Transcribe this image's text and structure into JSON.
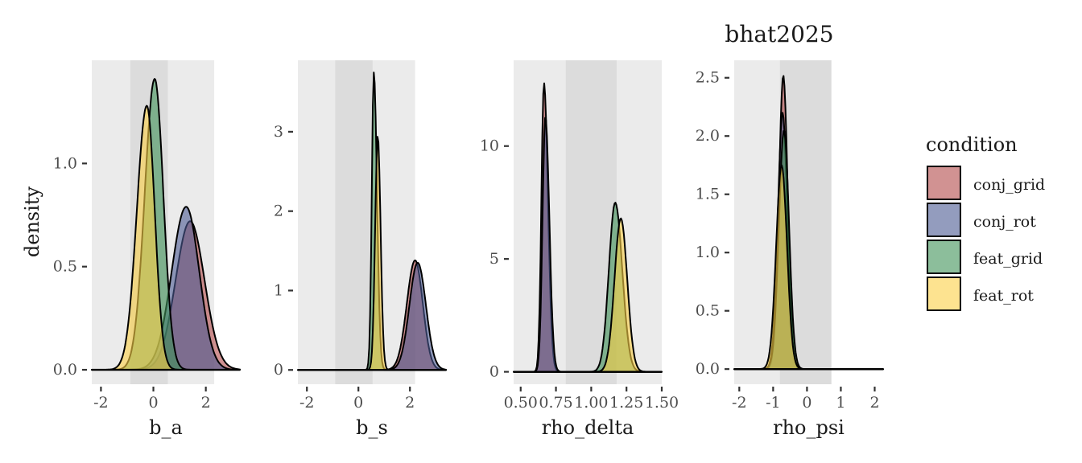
{
  "title": "bhat2025",
  "legend": {
    "title": "condition",
    "items": [
      {
        "label": "conj_grid",
        "color": "#b24a4a"
      },
      {
        "label": "conj_rot",
        "color": "#4b5a92"
      },
      {
        "label": "feat_grid",
        "color": "#3f9259"
      },
      {
        "label": "feat_rot",
        "color": "#fbd046"
      }
    ]
  },
  "y_axis_label": "density",
  "chart_data": [
    {
      "type": "area",
      "xlabel": "b_a",
      "ylabel": "density",
      "xlim": [
        -2.35,
        3.3
      ],
      "ylim": [
        -0.07,
        1.5
      ],
      "xticks": [
        -2,
        0,
        2
      ],
      "xtick_labels": [
        "-2",
        "0",
        "2"
      ],
      "yticks": [
        0.0,
        0.5,
        1.0
      ],
      "ytick_labels": [
        "0.0",
        "0.5",
        "1.0"
      ],
      "bands": [
        {
          "from": -2.35,
          "to": 2.32,
          "shade": "light"
        },
        {
          "from": -0.88,
          "to": 0.55,
          "shade": "dark"
        }
      ],
      "series": [
        {
          "name": "conj_grid",
          "color": "#b24a4a",
          "peak": 1.4,
          "height": 0.72,
          "sd_left": 0.55,
          "sd_right": 0.55,
          "from": -1.6,
          "to": 3.3
        },
        {
          "name": "conj_rot",
          "color": "#4b5a92",
          "peak": 1.25,
          "height": 0.79,
          "sd_left": 0.55,
          "sd_right": 0.5,
          "from": -1.6,
          "to": 3.3
        },
        {
          "name": "feat_grid",
          "color": "#3f9259",
          "peak": 0.05,
          "height": 1.41,
          "sd_left": 0.38,
          "sd_right": 0.33,
          "from": -2.35,
          "to": 2.5
        },
        {
          "name": "feat_rot",
          "color": "#fbd046",
          "peak": -0.25,
          "height": 1.28,
          "sd_left": 0.38,
          "sd_right": 0.3,
          "from": -2.35,
          "to": 2.5
        }
      ]
    },
    {
      "type": "area",
      "xlabel": "b_s",
      "ylabel": "density",
      "xlim": [
        -2.35,
        3.4
      ],
      "ylim": [
        -0.18,
        3.9
      ],
      "xticks": [
        -2,
        0,
        2
      ],
      "xtick_labels": [
        "-2",
        "0",
        "2"
      ],
      "yticks": [
        0,
        1,
        2,
        3
      ],
      "ytick_labels": [
        "0",
        "1",
        "2",
        "3"
      ],
      "bands": [
        {
          "from": -2.35,
          "to": 2.2,
          "shade": "light"
        },
        {
          "from": -0.9,
          "to": 0.55,
          "shade": "dark"
        }
      ],
      "series": [
        {
          "name": "conj_grid",
          "color": "#b24a4a",
          "peak": 2.2,
          "height": 1.38,
          "sd_left": 0.32,
          "sd_right": 0.3,
          "from": 1.0,
          "to": 3.4
        },
        {
          "name": "conj_rot",
          "color": "#4b5a92",
          "peak": 2.3,
          "height": 1.35,
          "sd_left": 0.32,
          "sd_right": 0.32,
          "from": 1.0,
          "to": 3.4
        },
        {
          "name": "feat_grid",
          "color": "#3f9259",
          "peak": 0.6,
          "height": 3.75,
          "sd_left": 0.08,
          "sd_right": 0.12,
          "from": -2.35,
          "to": 3.4
        },
        {
          "name": "feat_rot",
          "color": "#fbd046",
          "peak": 0.75,
          "height": 2.95,
          "sd_left": 0.1,
          "sd_right": 0.11,
          "from": -2.35,
          "to": 3.4
        }
      ]
    },
    {
      "type": "area",
      "xlabel": "rho_delta",
      "ylabel": "density",
      "xlim": [
        0.45,
        1.5
      ],
      "ylim": [
        -0.55,
        13.8
      ],
      "xticks": [
        0.5,
        0.75,
        1.0,
        1.25,
        1.5
      ],
      "xtick_labels": [
        "0.50",
        "0.75",
        "1.00",
        "1.25",
        "1.50"
      ],
      "yticks": [
        0,
        5,
        10
      ],
      "ytick_labels": [
        "0",
        "5",
        "10"
      ],
      "bands": [
        {
          "from": 0.45,
          "to": 1.5,
          "shade": "light"
        },
        {
          "from": 0.82,
          "to": 1.18,
          "shade": "dark"
        }
      ],
      "series": [
        {
          "name": "conj_grid",
          "color": "#b24a4a",
          "peak": 0.665,
          "height": 12.8,
          "sd_left": 0.018,
          "sd_right": 0.028,
          "from": 0.45,
          "to": 1.5
        },
        {
          "name": "conj_rot",
          "color": "#4b5a92",
          "peak": 0.675,
          "height": 11.3,
          "sd_left": 0.02,
          "sd_right": 0.028,
          "from": 0.45,
          "to": 1.5
        },
        {
          "name": "feat_grid",
          "color": "#3f9259",
          "peak": 1.17,
          "height": 7.5,
          "sd_left": 0.045,
          "sd_right": 0.05,
          "from": 0.45,
          "to": 1.5
        },
        {
          "name": "feat_rot",
          "color": "#fbd046",
          "peak": 1.21,
          "height": 6.8,
          "sd_left": 0.045,
          "sd_right": 0.045,
          "from": 0.45,
          "to": 1.5
        }
      ]
    },
    {
      "type": "area",
      "xlabel": "rho_psi",
      "ylabel": "density",
      "xlim": [
        -2.15,
        2.25
      ],
      "ylim": [
        -0.13,
        2.65
      ],
      "xticks": [
        -2,
        -1,
        0,
        1,
        2
      ],
      "xtick_labels": [
        "-2",
        "-1",
        "0",
        "1",
        "2"
      ],
      "yticks": [
        0.0,
        0.5,
        1.0,
        1.5,
        2.0,
        2.5
      ],
      "ytick_labels": [
        "0.0",
        "0.5",
        "1.0",
        "1.5",
        "2.0",
        "2.5"
      ],
      "bands": [
        {
          "from": -2.15,
          "to": 0.72,
          "shade": "light"
        },
        {
          "from": -0.8,
          "to": 0.72,
          "shade": "dark"
        }
      ],
      "series": [
        {
          "name": "conj_grid",
          "color": "#b24a4a",
          "peak": -0.7,
          "height": 2.52,
          "sd_left": 0.13,
          "sd_right": 0.13,
          "from": -2.15,
          "to": 2.25
        },
        {
          "name": "conj_rot",
          "color": "#4b5a92",
          "peak": -0.72,
          "height": 2.2,
          "sd_left": 0.14,
          "sd_right": 0.14,
          "from": -2.15,
          "to": 2.25
        },
        {
          "name": "feat_grid",
          "color": "#3f9259",
          "peak": -0.68,
          "height": 2.05,
          "sd_left": 0.15,
          "sd_right": 0.15,
          "from": -2.15,
          "to": 2.25
        },
        {
          "name": "feat_rot",
          "color": "#fbd046",
          "peak": -0.75,
          "height": 1.75,
          "sd_left": 0.16,
          "sd_right": 0.16,
          "from": -2.15,
          "to": 2.25
        }
      ]
    }
  ]
}
